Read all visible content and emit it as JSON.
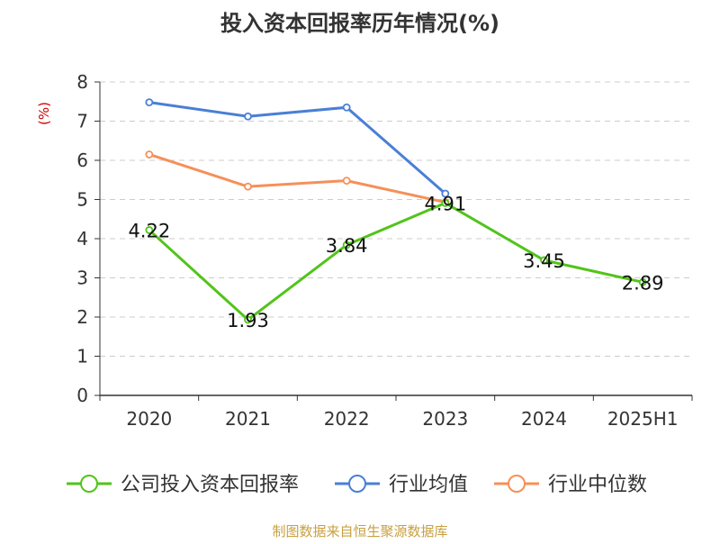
{
  "chart_data": {
    "type": "line",
    "title": "投入资本回报率历年情况(%)",
    "ylabel": "(%)",
    "xlabel": "",
    "categories": [
      "2020",
      "2021",
      "2022",
      "2023",
      "2024",
      "2025H1"
    ],
    "ylim": [
      0,
      8
    ],
    "yticks": [
      "0",
      "1",
      "2",
      "3",
      "4",
      "5",
      "6",
      "7",
      "8"
    ],
    "grid": true,
    "legend_position": "bottom",
    "series": [
      {
        "name": "公司投入资本回报率",
        "color": "#52c41a",
        "values": [
          4.22,
          1.93,
          3.84,
          4.91,
          3.45,
          2.89
        ],
        "labels": [
          "4.22",
          "1.93",
          "3.84",
          "4.91",
          "3.45",
          "2.89"
        ]
      },
      {
        "name": "行业均值",
        "color": "#4a7fd6",
        "values": [
          7.48,
          7.12,
          7.35,
          5.15,
          null,
          null
        ]
      },
      {
        "name": "行业中位数",
        "color": "#f5905a",
        "values": [
          6.15,
          5.33,
          5.48,
          4.93,
          null,
          null
        ]
      }
    ]
  },
  "source_note": "制图数据来自恒生聚源数据库",
  "colors": {
    "title": "#333333",
    "ylabel": "#cc0000",
    "source": "#c8a040",
    "axis": "#333333",
    "grid": "#cccccc"
  }
}
